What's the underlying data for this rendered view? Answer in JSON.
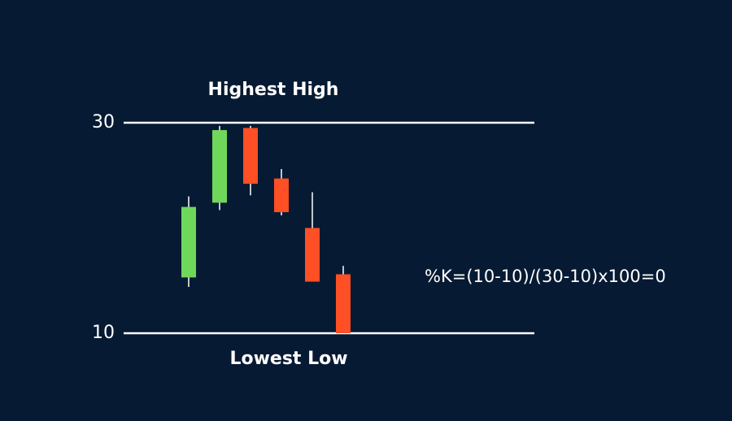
{
  "chart_data": {
    "type": "candlestick",
    "categories": [
      null,
      null,
      null,
      null,
      null,
      null
    ],
    "open": [
      15.3,
      22.4,
      29.5,
      24.7,
      20.0,
      15.6
    ],
    "high": [
      23.0,
      29.7,
      29.7,
      25.6,
      23.4,
      16.4
    ],
    "low": [
      14.4,
      21.7,
      23.1,
      21.2,
      14.9,
      10
    ],
    "close": [
      22.0,
      29.3,
      24.2,
      21.5,
      14.9,
      10
    ],
    "up_color": "#6fd85a",
    "down_color": "#ff4f24",
    "ylim": [
      10,
      30
    ],
    "yticks": [
      10,
      30
    ],
    "grid": true,
    "annotations": {
      "highest": "Highest High",
      "lowest": "Lowest Low",
      "formula": "%K=(10-10)/(30-10)x100=0"
    }
  }
}
